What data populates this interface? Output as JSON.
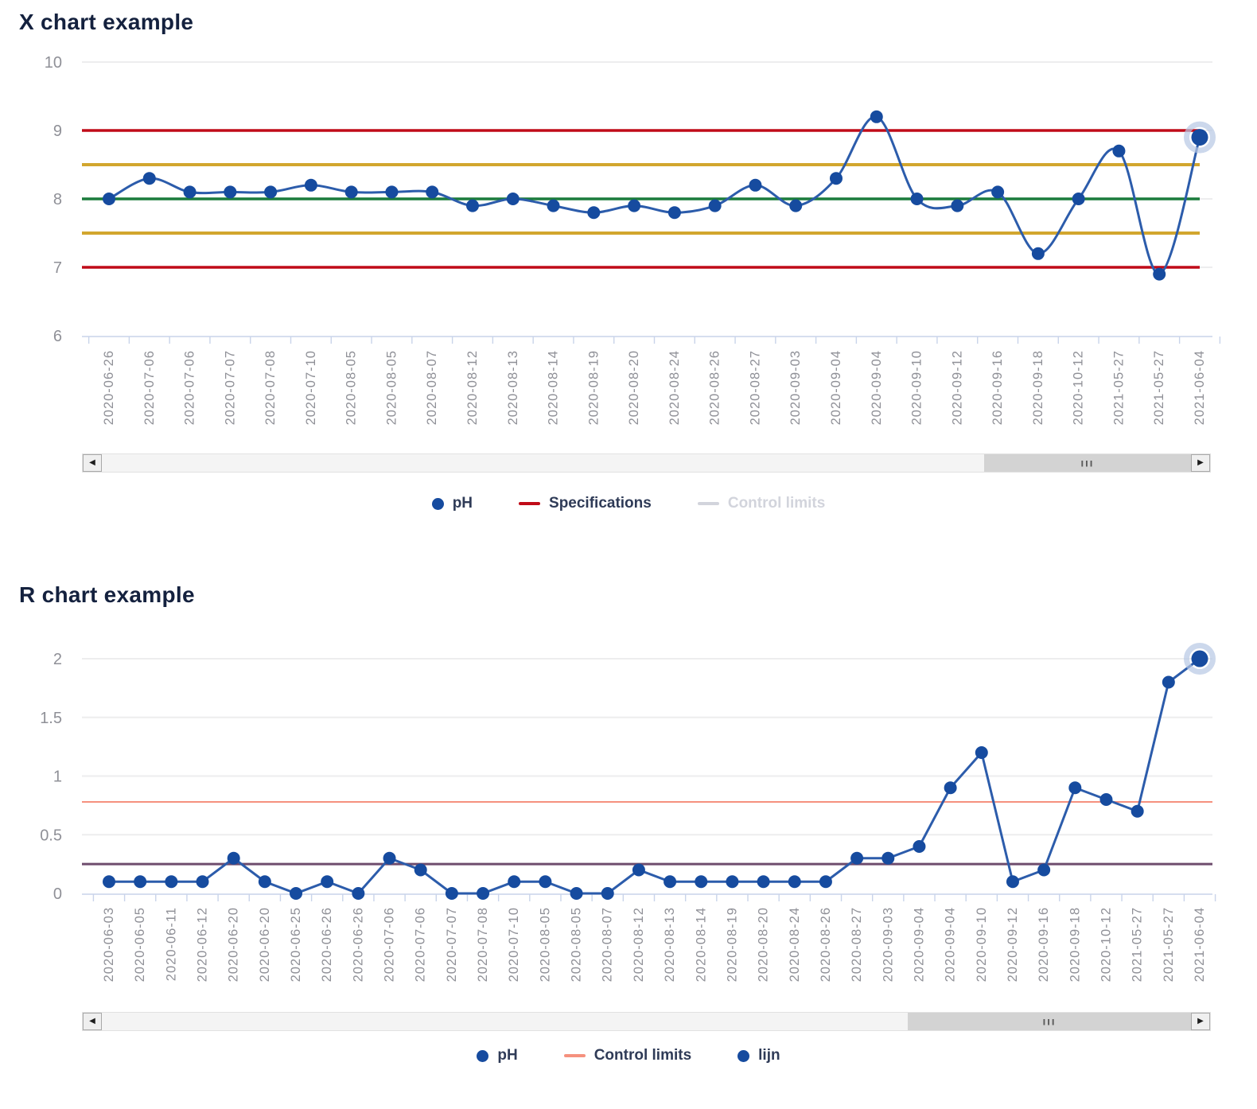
{
  "icons": {
    "left_arrow": "◀",
    "right_arrow": "▶"
  },
  "chart_data": [
    {
      "type": "line",
      "title": "X chart example",
      "series": [
        {
          "name": "pH",
          "color": "#2c5cab",
          "point_color": "#164b9f"
        }
      ],
      "x": [
        "2020-06-26",
        "2020-07-06",
        "2020-07-06",
        "2020-07-07",
        "2020-07-08",
        "2020-07-10",
        "2020-08-05",
        "2020-08-05",
        "2020-08-07",
        "2020-08-12",
        "2020-08-13",
        "2020-08-14",
        "2020-08-19",
        "2020-08-20",
        "2020-08-24",
        "2020-08-26",
        "2020-08-27",
        "2020-09-03",
        "2020-09-04",
        "2020-09-04",
        "2020-09-10",
        "2020-09-12",
        "2020-09-16",
        "2020-09-18",
        "2020-10-12",
        "2021-05-27",
        "2021-05-27",
        "2021-06-04"
      ],
      "y": [
        8.0,
        8.3,
        8.1,
        8.1,
        8.1,
        8.2,
        8.1,
        8.1,
        8.1,
        7.9,
        8.0,
        7.9,
        7.8,
        7.9,
        7.8,
        7.9,
        8.2,
        7.9,
        8.3,
        9.2,
        8.0,
        7.9,
        8.1,
        7.2,
        8.0,
        8.7,
        6.9,
        8.9
      ],
      "ylim": [
        6,
        10
      ],
      "yticks": [
        "10",
        "9",
        "8",
        "7",
        "6"
      ],
      "ytick_values": [
        10,
        9,
        8,
        7,
        6
      ],
      "reference_lines": [
        {
          "name": "upper-specification",
          "value": 9,
          "color": "#c00b18",
          "width": 3.5
        },
        {
          "name": "upper-control-limit",
          "value": 8.5,
          "color": "#d2a62e",
          "width": 4
        },
        {
          "name": "center-line",
          "value": 8,
          "color": "#1b7b3c",
          "width": 3.5
        },
        {
          "name": "lower-control-limit",
          "value": 7.5,
          "color": "#d2a62e",
          "width": 4
        },
        {
          "name": "lower-specification",
          "value": 7,
          "color": "#c00b18",
          "width": 3.5
        }
      ],
      "line_style": "smooth",
      "highlight_last_point": true,
      "highlight_color": "#b6c8e4",
      "grid": true,
      "legend_position": "bottom"
    },
    {
      "type": "line",
      "title": "R chart example",
      "series": [
        {
          "name": "pH",
          "color": "#2c5cab",
          "point_color": "#164b9f"
        }
      ],
      "x": [
        "2020-06-03",
        "2020-06-05",
        "2020-06-11",
        "2020-06-12",
        "2020-06-20",
        "2020-06-20",
        "2020-06-25",
        "2020-06-26",
        "2020-06-26",
        "2020-07-06",
        "2020-07-06",
        "2020-07-07",
        "2020-07-08",
        "2020-07-10",
        "2020-08-05",
        "2020-08-05",
        "2020-08-07",
        "2020-08-12",
        "2020-08-13",
        "2020-08-14",
        "2020-08-19",
        "2020-08-20",
        "2020-08-24",
        "2020-08-26",
        "2020-08-27",
        "2020-09-03",
        "2020-09-04",
        "2020-09-04",
        "2020-09-10",
        "2020-09-12",
        "2020-09-16",
        "2020-09-18",
        "2020-10-12",
        "2021-05-27",
        "2021-05-27",
        "2021-06-04"
      ],
      "y": [
        0.1,
        0.1,
        0.1,
        0.1,
        0.3,
        0.1,
        0,
        0.1,
        0,
        0.3,
        0.2,
        0,
        0,
        0.1,
        0.1,
        0,
        0,
        0.2,
        0.1,
        0.1,
        0.1,
        0.1,
        0.1,
        0.1,
        0.3,
        0.3,
        0.4,
        0.9,
        1.2,
        0.1,
        0.2,
        0.9,
        0.8,
        0.7,
        1.8,
        2.0
      ],
      "ylim": [
        0,
        2
      ],
      "yticks": [
        "2",
        "1.5",
        "1",
        "0.5",
        "0"
      ],
      "ytick_values": [
        2,
        1.5,
        1,
        0.5,
        0
      ],
      "reference_lines": [
        {
          "name": "upper-control-limit",
          "value": 0.78,
          "color": "#f5917e",
          "width": 2
        },
        {
          "name": "center-line",
          "value": 0.25,
          "color": "#6e4c6d",
          "width": 3
        }
      ],
      "line_style": "straight",
      "highlight_last_point": true,
      "highlight_color": "#b6c8e4",
      "grid": true,
      "legend_position": "bottom"
    }
  ],
  "charts": [
    {
      "legend": [
        {
          "label": "pH",
          "marker": "dot",
          "color": "#164b9f",
          "disabled": false
        },
        {
          "label": "Specifications",
          "marker": "line",
          "color": "#c00b18",
          "disabled": false
        },
        {
          "label": "Control limits",
          "marker": "line",
          "color": "#d2d4dc",
          "disabled": true
        }
      ],
      "scrollbar": {
        "thumb_start": 0.81,
        "thumb_end": 1.0,
        "grip": "III"
      }
    },
    {
      "legend": [
        {
          "label": "pH",
          "marker": "dot",
          "color": "#164b9f",
          "disabled": false
        },
        {
          "label": "Control limits",
          "marker": "line",
          "color": "#f5917e",
          "disabled": false
        },
        {
          "label": "lijn",
          "marker": "dot",
          "color": "#164b9f",
          "disabled": false
        }
      ],
      "scrollbar": {
        "thumb_start": 0.74,
        "thumb_end": 1.0,
        "grip": "III"
      }
    }
  ]
}
